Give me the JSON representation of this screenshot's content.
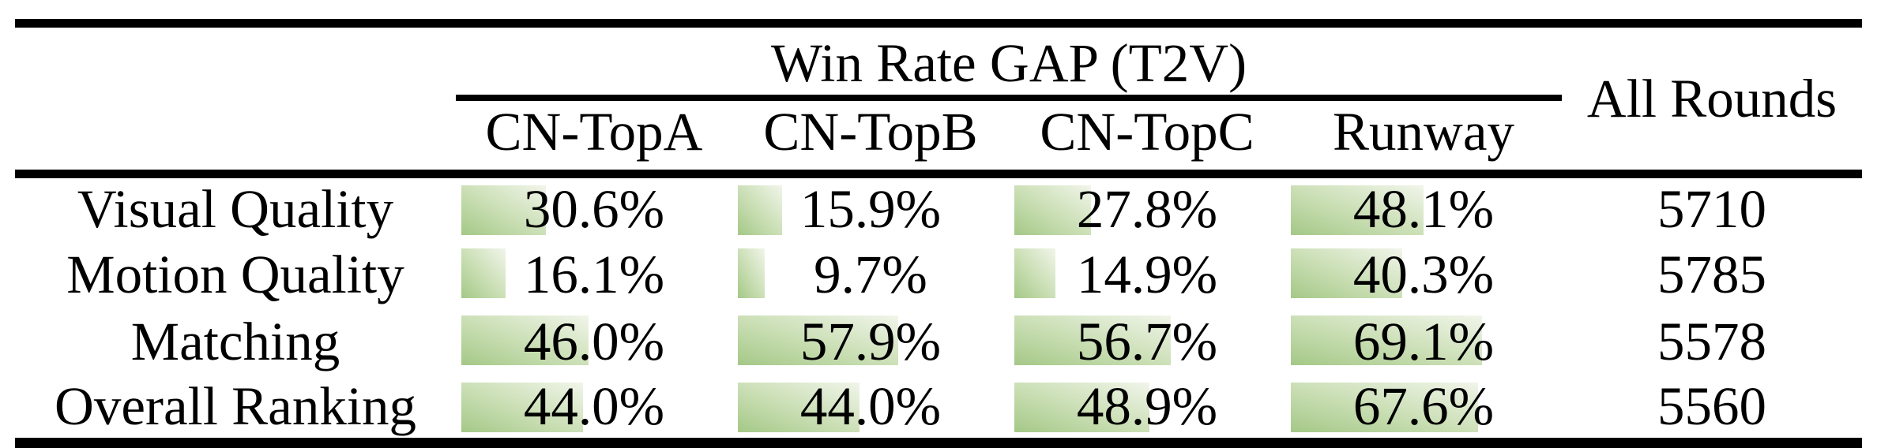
{
  "table": {
    "title": "Win Rate GAP (T2V)",
    "all_rounds_header": "All Rounds",
    "columns": [
      "CN-TopA",
      "CN-TopB",
      "CN-TopC",
      "Runway"
    ],
    "rows": [
      {
        "label": "Visual Quality",
        "cells": [
          "30.6%",
          "15.9%",
          "27.8%",
          "48.1%"
        ],
        "all_rounds": "5710"
      },
      {
        "label": "Motion Quality",
        "cells": [
          "16.1%",
          "9.7%",
          "14.9%",
          "40.3%"
        ],
        "all_rounds": "5785"
      },
      {
        "label": "Matching",
        "cells": [
          "46.0%",
          "57.9%",
          "56.7%",
          "69.1%"
        ],
        "all_rounds": "5578"
      },
      {
        "label": "Overall Ranking",
        "cells": [
          "44.0%",
          "44.0%",
          "48.9%",
          "67.6%"
        ],
        "all_rounds": "5560"
      }
    ]
  },
  "colors": {
    "bar_gradient_start": "#a4c887",
    "bar_gradient_end": "#f1f5ea",
    "rule": "#000000",
    "text": "#000000",
    "background": "#ffffff"
  },
  "chart_data": {
    "type": "table",
    "title": "Win Rate GAP (T2V)",
    "columns": [
      "CN-TopA",
      "CN-TopB",
      "CN-TopC",
      "Runway",
      "All Rounds"
    ],
    "row_labels": [
      "Visual Quality",
      "Motion Quality",
      "Matching",
      "Overall Ranking"
    ],
    "series": [
      {
        "name": "Visual Quality",
        "win_rate_gap_pct": [
          30.6,
          15.9,
          27.8,
          48.1
        ],
        "all_rounds": 5710
      },
      {
        "name": "Motion Quality",
        "win_rate_gap_pct": [
          16.1,
          9.7,
          14.9,
          40.3
        ],
        "all_rounds": 5785
      },
      {
        "name": "Matching",
        "win_rate_gap_pct": [
          46.0,
          57.9,
          56.7,
          69.1
        ],
        "all_rounds": 5578
      },
      {
        "name": "Overall Ranking",
        "win_rate_gap_pct": [
          44.0,
          44.0,
          48.9,
          67.6
        ],
        "all_rounds": 5560
      }
    ],
    "bar_encoding": "in-cell horizontal green gradient bar, width proportional to percentage (100% = full column width)"
  }
}
